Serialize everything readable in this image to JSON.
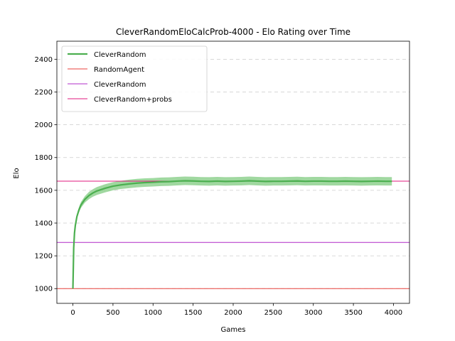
{
  "chart_data": {
    "type": "line",
    "title": "CleverRandomEloCalcProb-4000 - Elo Rating over Time",
    "xlabel": "Games",
    "ylabel": "Elo",
    "xlim": [
      -200,
      4200
    ],
    "ylim": [
      910,
      2510
    ],
    "xticks": [
      0,
      500,
      1000,
      1500,
      2000,
      2500,
      3000,
      3500,
      4000
    ],
    "yticks": [
      1000,
      1200,
      1400,
      1600,
      1800,
      2000,
      2200,
      2400
    ],
    "grid": "horizontal-dashed",
    "legend_position": "top-left",
    "series": [
      {
        "name": "CleverRandom",
        "kind": "line-with-band",
        "color": "#4caf50",
        "band_color": "#8fd18f",
        "x": [
          0,
          10,
          20,
          30,
          50,
          75,
          100,
          150,
          200,
          250,
          300,
          400,
          500,
          600,
          700,
          800,
          900,
          1000,
          1100,
          1200,
          1300,
          1400,
          1500,
          1600,
          1700,
          1800,
          1900,
          2000,
          2100,
          2200,
          2300,
          2400,
          2500,
          2600,
          2700,
          2800,
          2900,
          3000,
          3100,
          3200,
          3300,
          3400,
          3500,
          3600,
          3700,
          3800,
          3900,
          3980
        ],
        "values": [
          1000,
          1250,
          1340,
          1385,
          1440,
          1480,
          1510,
          1545,
          1568,
          1584,
          1596,
          1612,
          1625,
          1633,
          1639,
          1644,
          1647,
          1649,
          1652,
          1653,
          1656,
          1658,
          1657,
          1655,
          1654,
          1656,
          1654,
          1655,
          1656,
          1658,
          1656,
          1654,
          1655,
          1655,
          1656,
          1657,
          1655,
          1656,
          1656,
          1655,
          1655,
          1656,
          1655,
          1654,
          1655,
          1656,
          1655,
          1655
        ],
        "band_halfwidth": [
          0,
          5,
          8,
          10,
          14,
          16,
          18,
          20,
          22,
          23,
          24,
          25,
          25,
          25,
          26,
          26,
          26,
          26,
          26,
          26,
          26,
          26,
          26,
          26,
          26,
          26,
          26,
          26,
          26,
          26,
          26,
          26,
          26,
          26,
          26,
          26,
          26,
          26,
          26,
          26,
          26,
          26,
          26,
          26,
          26,
          26,
          26,
          26
        ]
      },
      {
        "name": "RandomAgent",
        "kind": "hline",
        "y": 1000,
        "color": "#e8413c"
      },
      {
        "name": "CleverRandom",
        "kind": "hline",
        "y": 1282,
        "color": "#b02cc8"
      },
      {
        "name": "CleverRandom+probs",
        "kind": "hline",
        "y": 1656,
        "color": "#e0197e"
      }
    ]
  }
}
